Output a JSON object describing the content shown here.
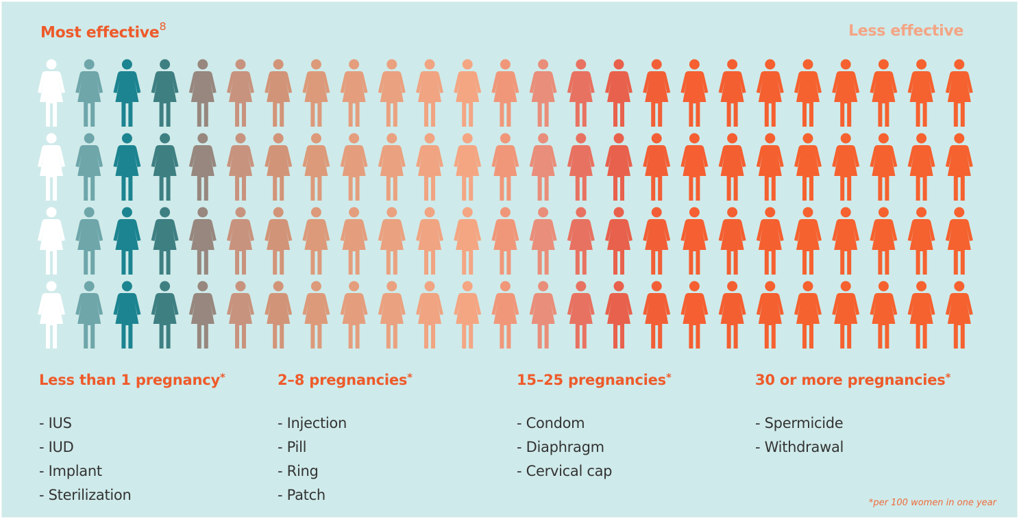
{
  "header": {
    "most_effective": "Most effective",
    "most_effective_ref": "8",
    "less_effective": "Less effective"
  },
  "figures": {
    "rows": 4,
    "icon": "woman-figure-icon",
    "column_colors": [
      "#ffffff",
      "#6ea6aa",
      "#1c8490",
      "#3e7f82",
      "#97877e",
      "#c8937e",
      "#d29478",
      "#dc9a7a",
      "#e49e7d",
      "#eaa17f",
      "#f0a482",
      "#f4a683",
      "#f0977a",
      "#e98e7a",
      "#e87261",
      "#e8614c",
      "#f25f36",
      "#f55f31",
      "#f45f31",
      "#f56030",
      "#f5622f",
      "#f5612f",
      "#f5622f",
      "#f5612f",
      "#f5622f"
    ]
  },
  "categories": [
    {
      "title": "Less than 1 pregnancy",
      "star": "*",
      "items": [
        "- IUS",
        "- IUD",
        "- Implant",
        "- Sterilization"
      ]
    },
    {
      "title": "2–8 pregnancies",
      "star": "*",
      "items": [
        "- Injection",
        "- Pill",
        "- Ring",
        "- Patch"
      ]
    },
    {
      "title": "15–25 pregnancies",
      "star": "*",
      "items": [
        "- Condom",
        "- Diaphragm",
        "- Cervical cap"
      ]
    },
    {
      "title": "30 or more pregnancies",
      "star": "*",
      "items": [
        "- Spermicide",
        "- Withdrawal"
      ]
    }
  ],
  "footnote": "*per 100 women in one year"
}
